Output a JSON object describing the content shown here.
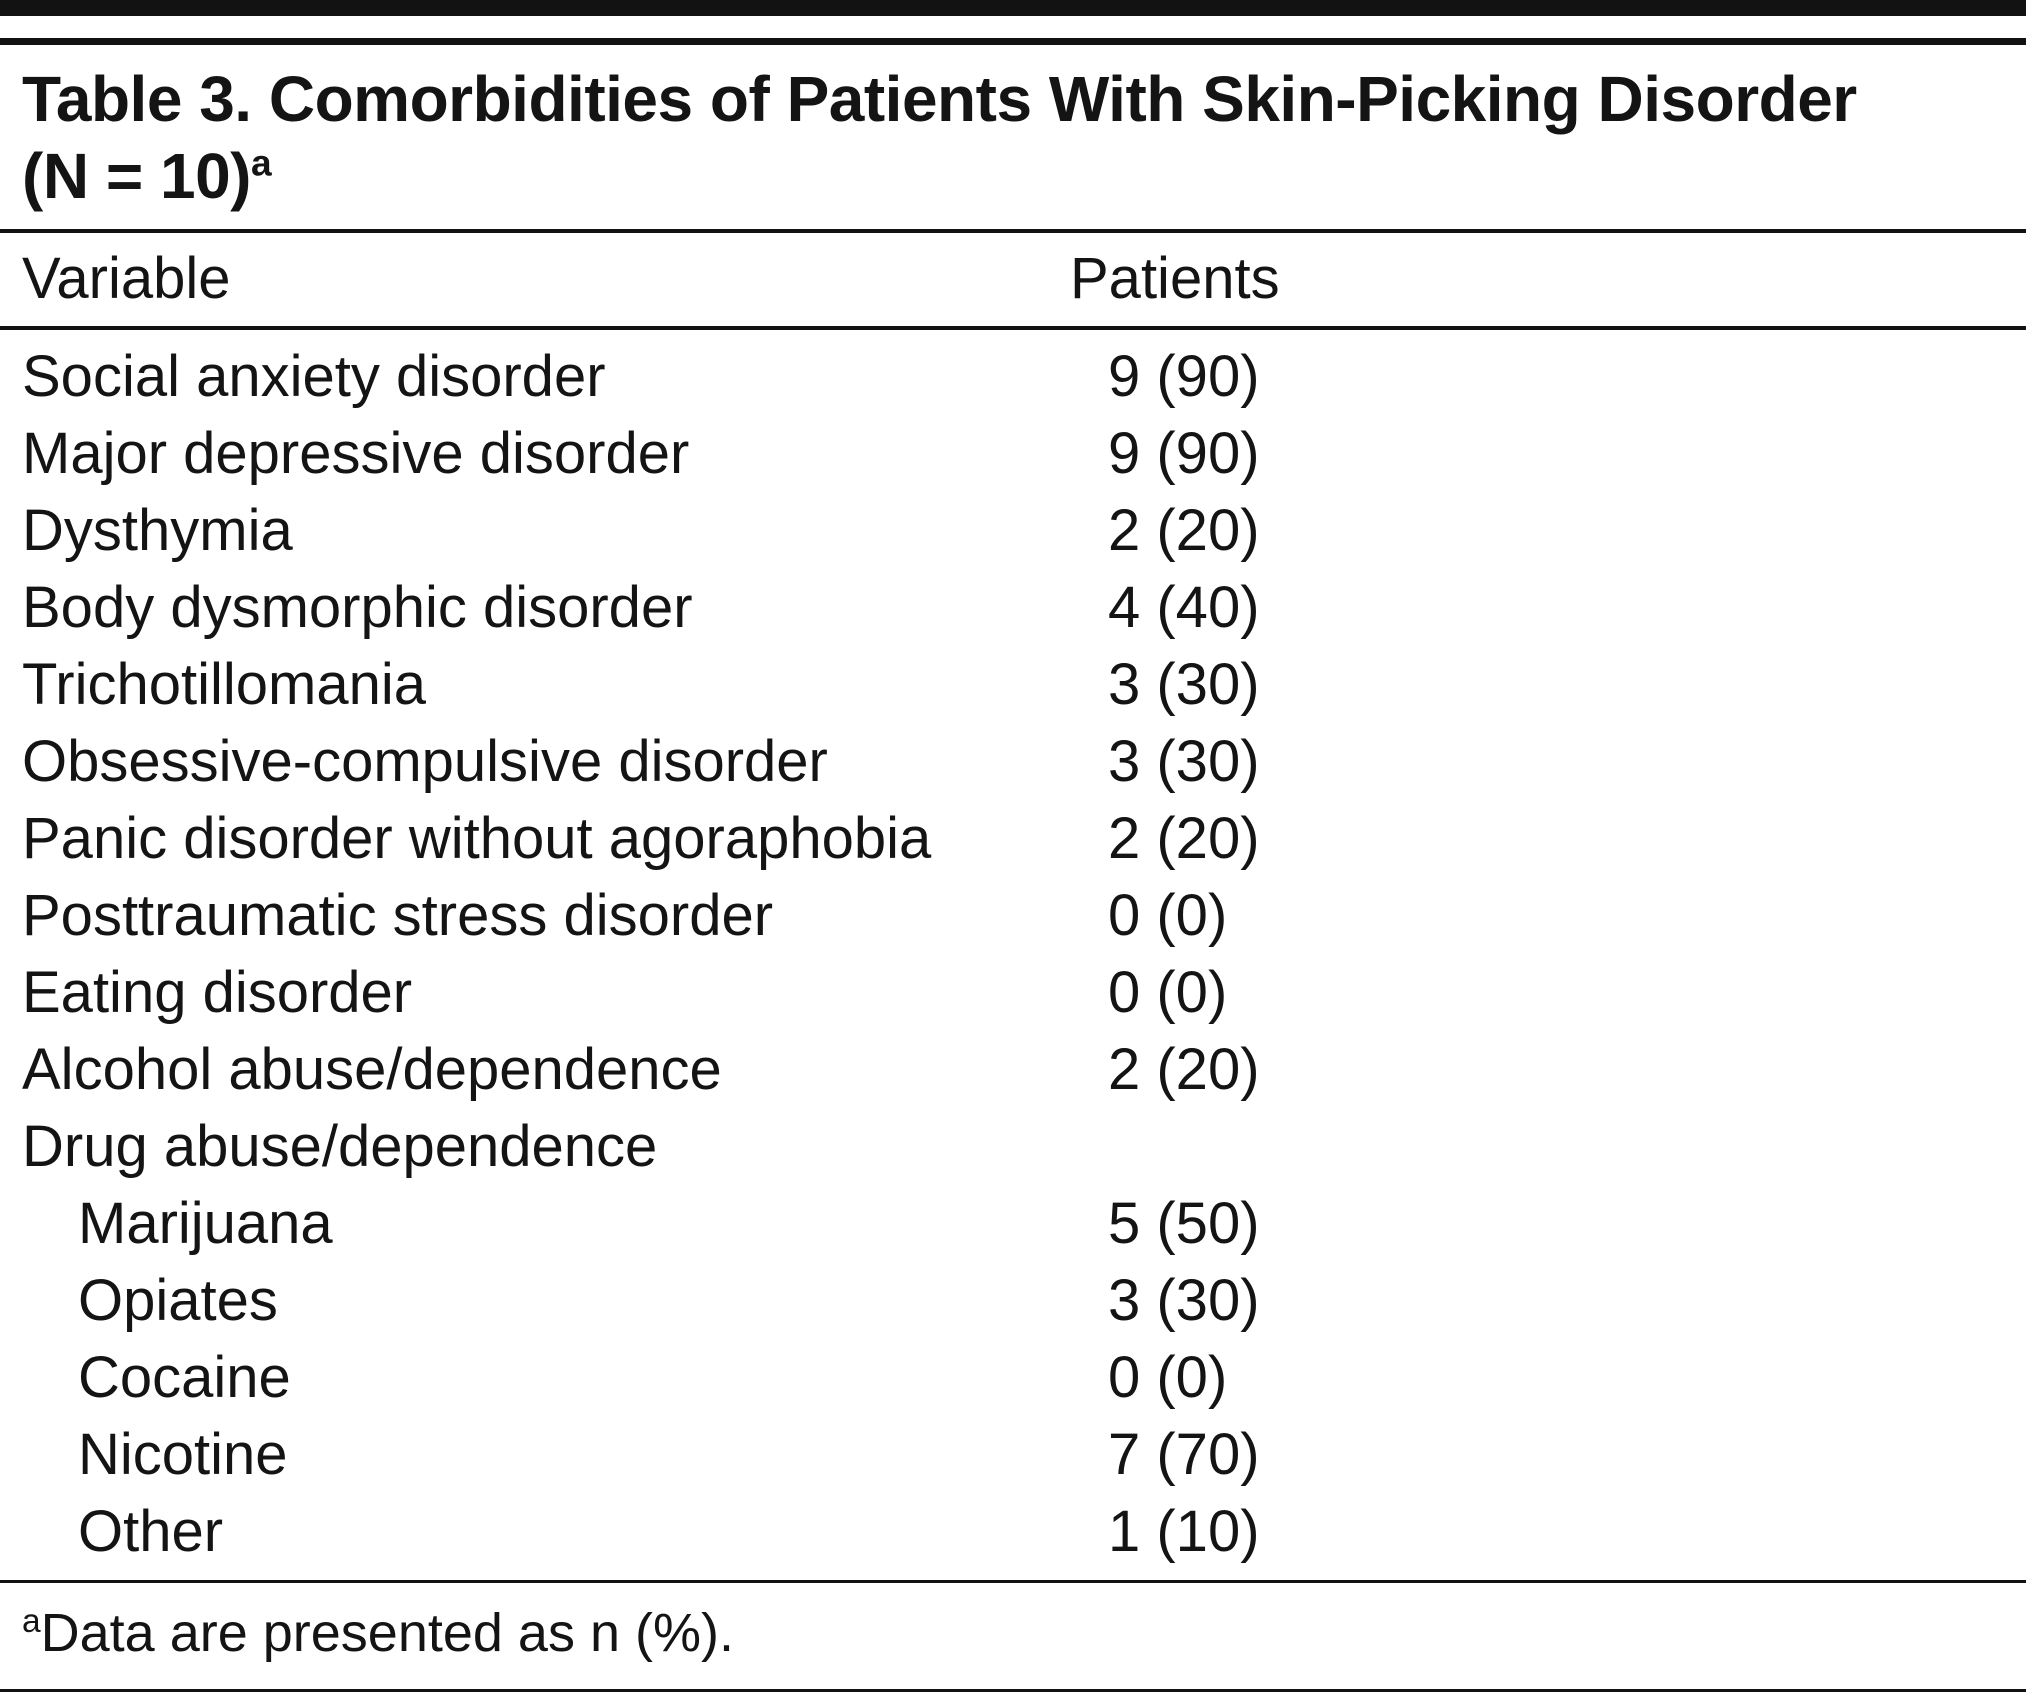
{
  "table": {
    "title_line1": "Table 3. Comorbidities of Patients With Skin-Picking Disorder",
    "title_line2": "(N = 10)",
    "title_footnote_marker": "a",
    "columns": {
      "variable": "Variable",
      "patients": "Patients"
    },
    "rows": [
      {
        "label": "Social anxiety disorder",
        "value": "9 (90)",
        "indent": false
      },
      {
        "label": "Major depressive disorder",
        "value": "9 (90)",
        "indent": false
      },
      {
        "label": "Dysthymia",
        "value": "2 (20)",
        "indent": false
      },
      {
        "label": "Body dysmorphic disorder",
        "value": "4 (40)",
        "indent": false
      },
      {
        "label": "Trichotillomania",
        "value": "3 (30)",
        "indent": false
      },
      {
        "label": "Obsessive-compulsive disorder",
        "value": "3 (30)",
        "indent": false
      },
      {
        "label": "Panic disorder without agoraphobia",
        "value": "2 (20)",
        "indent": false
      },
      {
        "label": "Posttraumatic stress disorder",
        "value": "0 (0)",
        "indent": false
      },
      {
        "label": "Eating disorder",
        "value": "0 (0)",
        "indent": false
      },
      {
        "label": "Alcohol abuse/dependence",
        "value": "2 (20)",
        "indent": false
      },
      {
        "label": "Drug abuse/dependence",
        "value": "",
        "indent": false
      },
      {
        "label": "Marijuana",
        "value": "5 (50)",
        "indent": true
      },
      {
        "label": "Opiates",
        "value": "3 (30)",
        "indent": true
      },
      {
        "label": "Cocaine",
        "value": "0 (0)",
        "indent": true
      },
      {
        "label": "Nicotine",
        "value": "7 (70)",
        "indent": true
      },
      {
        "label": "Other",
        "value": "1 (10)",
        "indent": true
      }
    ],
    "footnote": {
      "marker": "a",
      "text": "Data are presented as n (%)."
    }
  }
}
